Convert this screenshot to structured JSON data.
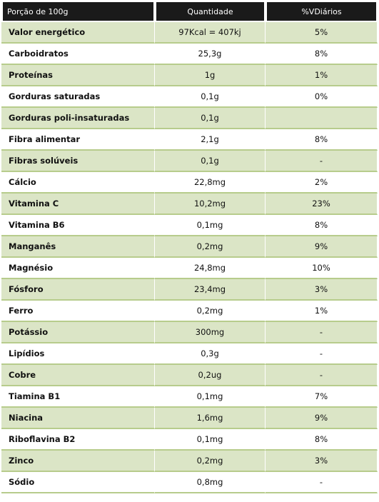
{
  "table": {
    "headers": [
      "Porção de 100g",
      "Quantidade",
      "%VDiários"
    ],
    "rows": [
      [
        "Valor energético",
        "97Kcal = 407kj",
        "5%"
      ],
      [
        "Carboidratos",
        "25,3g",
        "8%"
      ],
      [
        "Proteínas",
        "1g",
        "1%"
      ],
      [
        "Gorduras saturadas",
        "0,1g",
        "0%"
      ],
      [
        "Gorduras poli-insaturadas",
        "0,1g",
        ""
      ],
      [
        "Fibra alimentar",
        "2,1g",
        "8%"
      ],
      [
        "Fibras solúveis",
        "0,1g",
        "-"
      ],
      [
        "Cálcio",
        "22,8mg",
        "2%"
      ],
      [
        "Vitamina C",
        "10,2mg",
        "23%"
      ],
      [
        "Vitamina B6",
        "0,1mg",
        "8%"
      ],
      [
        "Manganês",
        "0,2mg",
        "9%"
      ],
      [
        "Magnésio",
        "24,8mg",
        "10%"
      ],
      [
        "Fósforo",
        "23,4mg",
        "3%"
      ],
      [
        "Ferro",
        "0,2mg",
        "1%"
      ],
      [
        "Potássio",
        "300mg",
        "-"
      ],
      [
        "Lipídios",
        "0,3g",
        "-"
      ],
      [
        "Cobre",
        "0,2ug",
        "-"
      ],
      [
        "Tiamina B1",
        "0,1mg",
        "7%"
      ],
      [
        "Niacina",
        "1,6mg",
        "9%"
      ],
      [
        "Riboflavina B2",
        "0,1mg",
        "8%"
      ],
      [
        "Zinco",
        "0,2mg",
        "3%"
      ],
      [
        "Sódio",
        "0,8mg",
        "-"
      ]
    ]
  },
  "colors": {
    "header_bg": "#1a1a1a",
    "row_odd": "#dbe5c6",
    "row_even": "#ffffff",
    "row_border": "#b7cc8c"
  }
}
